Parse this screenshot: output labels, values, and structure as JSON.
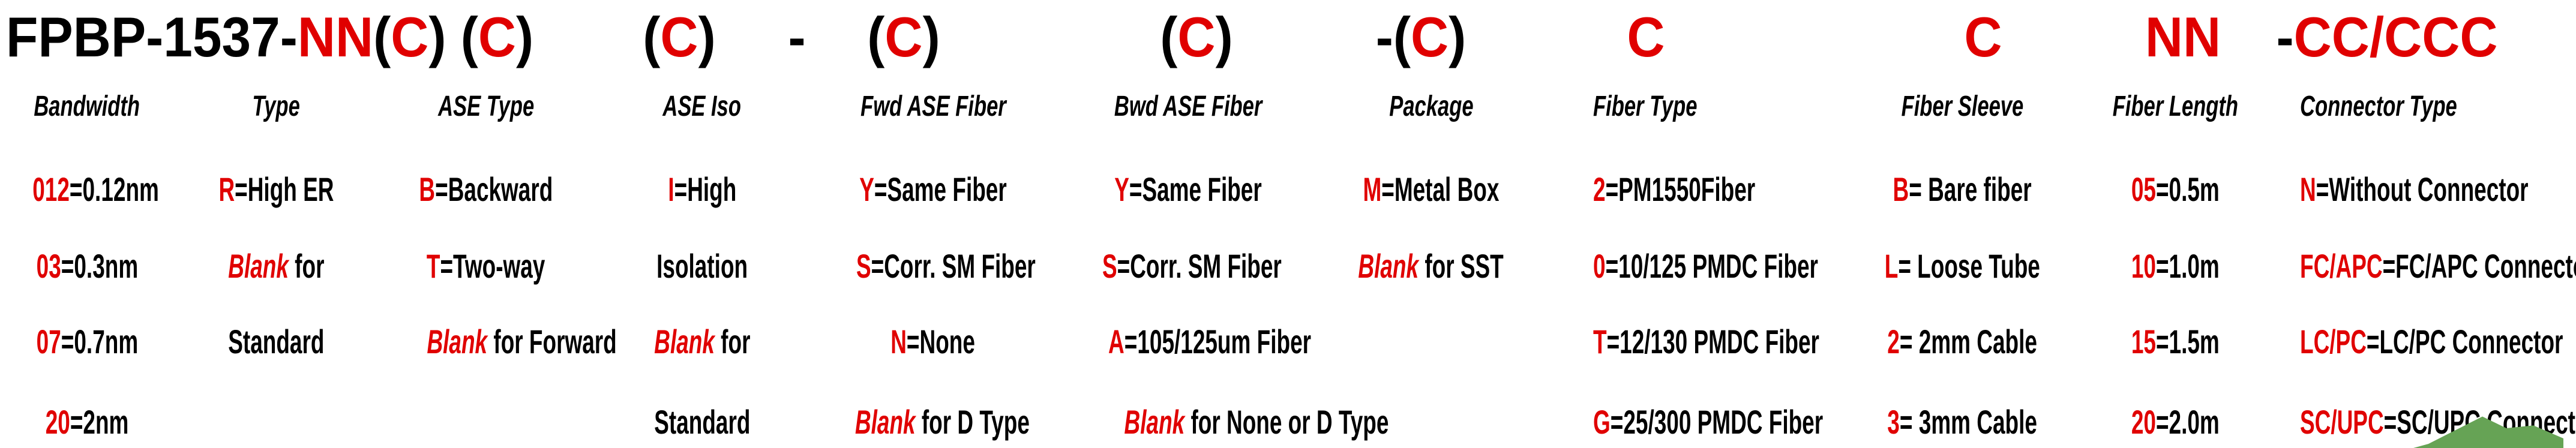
{
  "colors": {
    "accent_red": "#e00000",
    "text_black": "#000000",
    "arrow_green": "#66a355"
  },
  "part_number": {
    "prefix": [
      {
        "t": "FPBP-1537-",
        "s": "k"
      },
      {
        "t": "NN",
        "s": "r"
      },
      {
        "t": "(",
        "s": "k"
      },
      {
        "t": "C",
        "s": "r"
      },
      {
        "t": ") (",
        "s": "k"
      },
      {
        "t": "C",
        "s": "r"
      },
      {
        "t": ")",
        "s": "k"
      }
    ],
    "seg_ase_iso": [
      {
        "t": "(",
        "s": "k"
      },
      {
        "t": "C",
        "s": "r"
      },
      {
        "t": ")",
        "s": "k"
      }
    ],
    "dash_mid": [
      {
        "t": "-",
        "s": "k"
      }
    ],
    "seg_fwd": [
      {
        "t": "(",
        "s": "k"
      },
      {
        "t": "C",
        "s": "r"
      },
      {
        "t": ")",
        "s": "k"
      }
    ],
    "seg_bwd": [
      {
        "t": "(",
        "s": "k"
      },
      {
        "t": "C",
        "s": "r"
      },
      {
        "t": ")",
        "s": "k"
      }
    ],
    "seg_package": [
      {
        "t": "-(",
        "s": "k"
      },
      {
        "t": "C",
        "s": "r"
      },
      {
        "t": ")",
        "s": "k"
      }
    ],
    "seg_fiber_type": [
      {
        "t": "C",
        "s": "r"
      }
    ],
    "seg_fiber_sleeve": [
      {
        "t": "C",
        "s": "r"
      }
    ],
    "seg_fiber_length": [
      {
        "t": "NN",
        "s": "r"
      }
    ],
    "seg_connector": [
      {
        "t": "-",
        "s": "k"
      },
      {
        "t": "CC/CCC",
        "s": "r"
      }
    ]
  },
  "columns": [
    {
      "header": "Bandwidth",
      "rows": [
        [
          {
            "t": "012",
            "s": "r"
          },
          {
            "t": "=0.12nm",
            "s": "k"
          }
        ],
        [
          {
            "t": "03",
            "s": "r"
          },
          {
            "t": "=0.3nm",
            "s": "k"
          }
        ],
        [
          {
            "t": "07",
            "s": "r"
          },
          {
            "t": "=0.7nm",
            "s": "k"
          }
        ],
        [
          {
            "t": "20",
            "s": "r"
          },
          {
            "t": "=2nm",
            "s": "k"
          }
        ]
      ]
    },
    {
      "header": "Type",
      "rows": [
        [
          {
            "t": "R",
            "s": "r"
          },
          {
            "t": "=High ER",
            "s": "k"
          }
        ],
        [
          {
            "t": "Blank",
            "s": "ri"
          },
          {
            "t": " for",
            "s": "k"
          }
        ],
        [
          {
            "t": "Standard",
            "s": "k"
          }
        ],
        []
      ]
    },
    {
      "header": "ASE Type",
      "rows": [
        [
          {
            "t": "B",
            "s": "r"
          },
          {
            "t": "=Backward",
            "s": "k"
          }
        ],
        [
          {
            "t": "T",
            "s": "r"
          },
          {
            "t": "=Two-way",
            "s": "k"
          }
        ],
        [
          {
            "t": "Blank",
            "s": "ri"
          },
          {
            "t": " for Forward",
            "s": "k"
          }
        ],
        []
      ]
    },
    {
      "header": "ASE Iso",
      "rows": [
        [
          {
            "t": "I",
            "s": "r"
          },
          {
            "t": "=High",
            "s": "k"
          }
        ],
        [
          {
            "t": "Isolation",
            "s": "k"
          }
        ],
        [
          {
            "t": "Blank",
            "s": "ri"
          },
          {
            "t": " for",
            "s": "k"
          }
        ],
        [
          {
            "t": "Standard",
            "s": "k"
          }
        ]
      ]
    },
    {
      "header": "Fwd ASE Fiber",
      "rows": [
        [
          {
            "t": "Y",
            "s": "r"
          },
          {
            "t": "=Same Fiber",
            "s": "k"
          }
        ],
        [
          {
            "t": "S",
            "s": "r"
          },
          {
            "t": "=Corr. SM Fiber",
            "s": "k"
          }
        ],
        [
          {
            "t": "N",
            "s": "r"
          },
          {
            "t": "=None",
            "s": "k"
          }
        ],
        [
          {
            "t": "Blank",
            "s": "ri"
          },
          {
            "t": " for D Type",
            "s": "k"
          }
        ]
      ]
    },
    {
      "header": "Bwd ASE Fiber",
      "rows": [
        [
          {
            "t": "Y",
            "s": "r"
          },
          {
            "t": "=Same Fiber",
            "s": "k"
          }
        ],
        [
          {
            "t": "S",
            "s": "r"
          },
          {
            "t": "=Corr. SM Fiber",
            "s": "k"
          }
        ],
        [
          {
            "t": "A",
            "s": "r"
          },
          {
            "t": "=105/125um Fiber",
            "s": "k"
          }
        ],
        [
          {
            "t": "Blank",
            "s": "ri"
          },
          {
            "t": " for None or D Type",
            "s": "k"
          }
        ]
      ]
    },
    {
      "header": "Package",
      "rows": [
        [
          {
            "t": "M",
            "s": "r"
          },
          {
            "t": "=Metal Box",
            "s": "k"
          }
        ],
        [
          {
            "t": "Blank",
            "s": "ri"
          },
          {
            "t": " for SST",
            "s": "k"
          }
        ],
        [],
        []
      ]
    },
    {
      "header": "Fiber Type",
      "rows": [
        [
          {
            "t": "2",
            "s": "r"
          },
          {
            "t": "=PM1550Fiber",
            "s": "k"
          }
        ],
        [
          {
            "t": "0",
            "s": "r"
          },
          {
            "t": "=10/125 PMDC Fiber",
            "s": "k"
          }
        ],
        [
          {
            "t": "T",
            "s": "r"
          },
          {
            "t": "=12/130 PMDC Fiber",
            "s": "k"
          }
        ],
        [
          {
            "t": "G",
            "s": "r"
          },
          {
            "t": "=25/300 PMDC Fiber",
            "s": "k"
          }
        ]
      ]
    },
    {
      "header": "Fiber Sleeve",
      "rows": [
        [
          {
            "t": "B",
            "s": "r"
          },
          {
            "t": "= Bare fiber",
            "s": "k"
          }
        ],
        [
          {
            "t": "L",
            "s": "r"
          },
          {
            "t": "= Loose Tube",
            "s": "k"
          }
        ],
        [
          {
            "t": "2",
            "s": "r"
          },
          {
            "t": "= 2mm Cable",
            "s": "k"
          }
        ],
        [
          {
            "t": "3",
            "s": "r"
          },
          {
            "t": "= 3mm Cable",
            "s": "k"
          }
        ]
      ]
    },
    {
      "header": "Fiber Length",
      "rows": [
        [
          {
            "t": "05",
            "s": "r"
          },
          {
            "t": "=0.5m",
            "s": "k"
          }
        ],
        [
          {
            "t": "10",
            "s": "r"
          },
          {
            "t": "=1.0m",
            "s": "k"
          }
        ],
        [
          {
            "t": "15",
            "s": "r"
          },
          {
            "t": "=1.5m",
            "s": "k"
          }
        ],
        [
          {
            "t": "20",
            "s": "r"
          },
          {
            "t": "=2.0m",
            "s": "k"
          }
        ]
      ]
    },
    {
      "header": "Connector Type",
      "rows": [
        [
          {
            "t": "N",
            "s": "r"
          },
          {
            "t": "=Without Connector",
            "s": "k"
          }
        ],
        [
          {
            "t": "FC/APC",
            "s": "r"
          },
          {
            "t": "=FC/APC Connector",
            "s": "k"
          }
        ],
        [
          {
            "t": "LC/PC",
            "s": "r"
          },
          {
            "t": "=LC/PC Connector",
            "s": "k"
          }
        ],
        [
          {
            "t": "SC/UPC",
            "s": "r"
          },
          {
            "t": "=SC/UPC Connector",
            "s": "k"
          }
        ]
      ]
    }
  ]
}
